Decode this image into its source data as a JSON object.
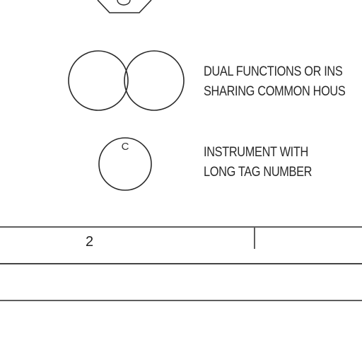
{
  "legend": {
    "rows": [
      {
        "symbol": "hexagon",
        "symbol_letter": "C",
        "line1": "",
        "line2": ""
      },
      {
        "symbol": "double-circle",
        "line1": "DUAL FUNCTIONS OR INS",
        "line2": "SHARING COMMON HOUS"
      },
      {
        "symbol": "circle-with-letter",
        "symbol_letter": "C",
        "line1": "INSTRUMENT WITH",
        "line2": "LONG TAG NUMBER"
      }
    ]
  },
  "table": {
    "row1_cell1": "2"
  },
  "colors": {
    "ink": "#2a2a2a",
    "background": "#ffffff"
  }
}
